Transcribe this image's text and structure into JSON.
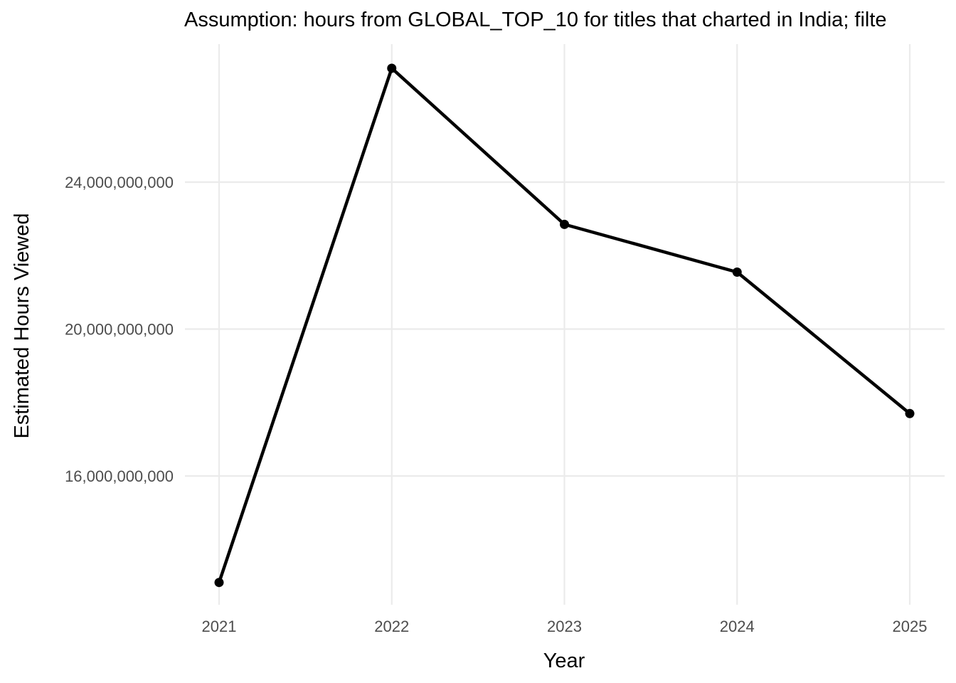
{
  "chart_data": {
    "type": "line",
    "title": "Assumption: hours from GLOBAL_TOP_10 for titles that charted in India; filte",
    "xlabel": "Year",
    "ylabel": "Estimated Hours Viewed",
    "x": [
      "2021",
      "2022",
      "2023",
      "2024",
      "2025"
    ],
    "series": [
      {
        "values": [
          13100000000,
          27100000000,
          22850000000,
          21550000000,
          17700000000
        ]
      }
    ],
    "y_ticks": [
      16000000000,
      20000000000,
      24000000000
    ],
    "y_tick_labels": [
      "16,000,000,000",
      "20,000,000,000",
      "24,000,000,000"
    ],
    "ylim": [
      12800000000,
      27800000000
    ],
    "grid": true,
    "legend": "none",
    "colors": {
      "line": "#000000",
      "grid": "#ebebeb",
      "tick_text": "#4d4d4d"
    }
  }
}
